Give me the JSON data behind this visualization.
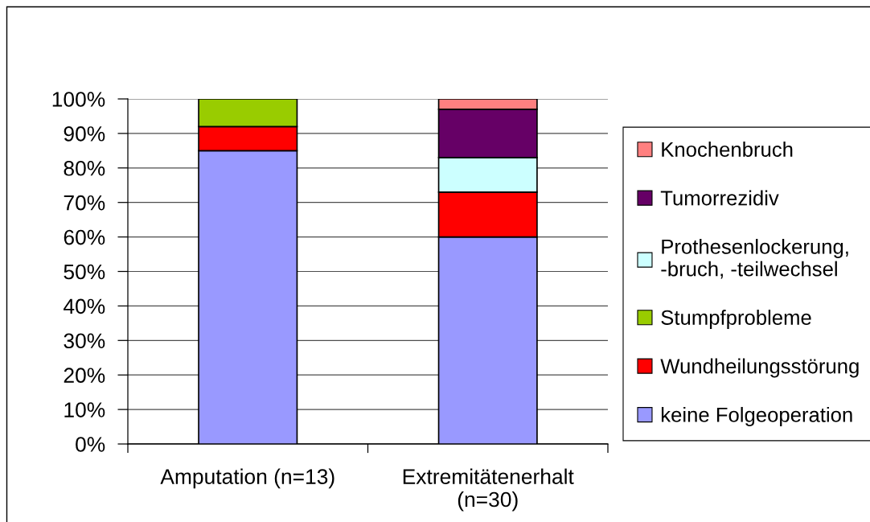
{
  "chart_data": {
    "type": "bar",
    "stacked": true,
    "categories": [
      "Amputation (n=13)",
      "Extremitätenerhalt (n=30)"
    ],
    "series": [
      {
        "name": "keine Folgeoperation",
        "color": "#9999ff",
        "values": [
          85,
          60
        ]
      },
      {
        "name": "Wundheilungsstörung",
        "color": "#ff0000",
        "values": [
          7,
          13
        ]
      },
      {
        "name": "Stumpfprobleme",
        "color": "#99cc00",
        "values": [
          8,
          null
        ]
      },
      {
        "name": "Prothesenlockerung, -bruch, -teilwechsel",
        "color": "#ccffff",
        "values": [
          null,
          10
        ]
      },
      {
        "name": "Tumorrezidiv",
        "color": "#660066",
        "values": [
          null,
          14
        ]
      },
      {
        "name": "Knochenbruch",
        "color": "#ff8080",
        "values": [
          null,
          3
        ]
      }
    ],
    "ylim": [
      0,
      100
    ],
    "yticks": [
      {
        "value": 0,
        "label": "0%"
      },
      {
        "value": 10,
        "label": "10%"
      },
      {
        "value": 20,
        "label": "20%"
      },
      {
        "value": 30,
        "label": "30%"
      },
      {
        "value": 40,
        "label": "40%"
      },
      {
        "value": 50,
        "label": "50%"
      },
      {
        "value": 60,
        "label": "60%"
      },
      {
        "value": 70,
        "label": "70%"
      },
      {
        "value": 80,
        "label": "80%"
      },
      {
        "value": 90,
        "label": "90%"
      },
      {
        "value": 100,
        "label": "100%"
      }
    ],
    "grid": "y",
    "legend": "right"
  }
}
